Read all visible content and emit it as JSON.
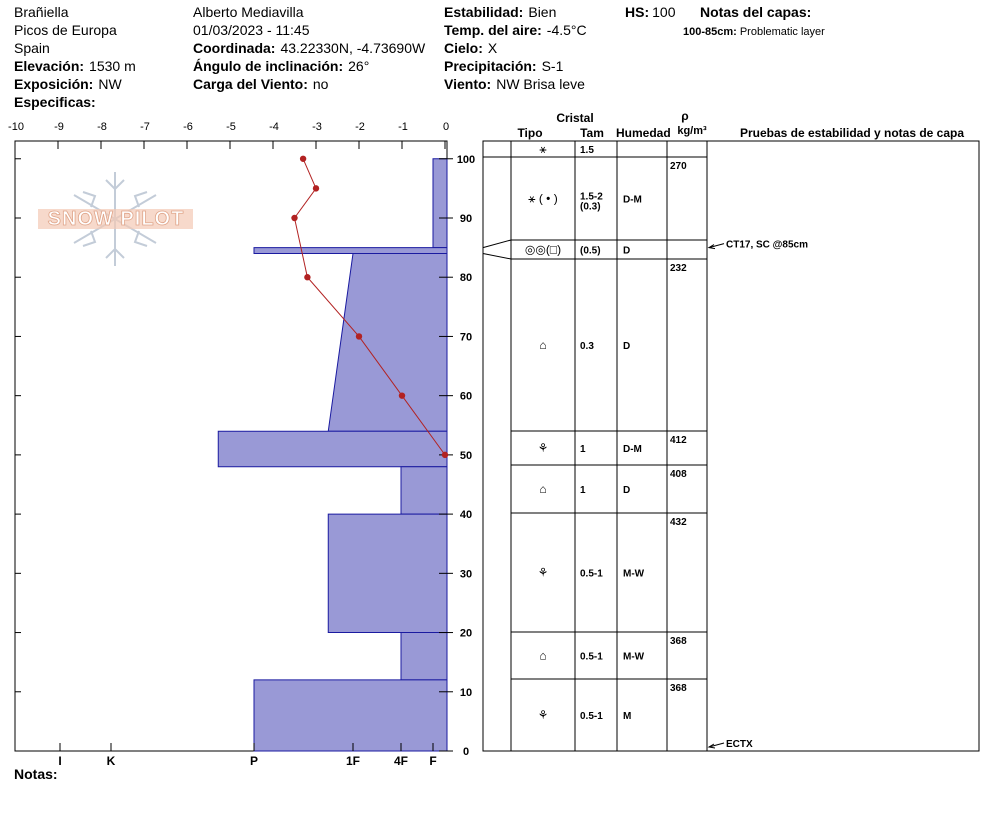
{
  "header": {
    "col1": [
      {
        "value": "Brañiella"
      },
      {
        "value": "Picos de Europa"
      },
      {
        "value": "Spain"
      },
      {
        "label": "Elevación:",
        "value": "1530 m"
      },
      {
        "label": "Exposición:",
        "value": "NW"
      },
      {
        "label": "Especificas:"
      }
    ],
    "col2": [
      {
        "value": "Alberto Mediavilla"
      },
      {
        "value": "01/03/2023 - 11:45"
      },
      {
        "label": "Coordinada:",
        "value": "43.22330N, -4.73690W"
      },
      {
        "label": "Ángulo de inclinación:",
        "value": "26°"
      },
      {
        "label": "Carga del Viento:",
        "value": "no"
      }
    ],
    "col3": [
      {
        "label": "Estabilidad:",
        "value": "Bien"
      },
      {
        "label": "Temp. del aire:",
        "value": "-4.5°C"
      },
      {
        "label": "Cielo:",
        "value": "X"
      },
      {
        "label": "Precipitación:",
        "value": "S-1"
      },
      {
        "label": "Viento:",
        "value": "NW Brisa leve"
      }
    ],
    "hs": {
      "label": "HS:",
      "value": 100
    },
    "notes": {
      "title": "Notas del capas:",
      "items": [
        {
          "label": "100-85cm:",
          "value": "Problematic layer"
        }
      ]
    }
  },
  "footer": "Notas:",
  "chart_data": {
    "type": "snow-profile",
    "logo": "SNOW PILOT",
    "ylim": [
      0,
      103
    ],
    "yticks": [
      0,
      10,
      20,
      30,
      40,
      50,
      60,
      70,
      80,
      90,
      100
    ],
    "temperature": {
      "xlim": [
        -10,
        0
      ],
      "xticks": [
        -10,
        -9,
        -8,
        -7,
        -6,
        -5,
        -4,
        -3,
        -2,
        -1,
        0
      ],
      "color": "#b22222",
      "heights": [
        100,
        95,
        90,
        80,
        70,
        60,
        50
      ],
      "values": [
        -3.3,
        -3,
        -3.5,
        -3.2,
        -2,
        -1,
        0
      ]
    },
    "hardness": {
      "color": "#9999d6",
      "ticks": [
        {
          "value": 6,
          "label": "I"
        },
        {
          "value": 5,
          "label": "K"
        },
        {
          "value": 4,
          "label": "P"
        },
        {
          "value": 3,
          "label": "1F"
        },
        {
          "value": 2,
          "label": "4F"
        },
        {
          "value": 1,
          "label": "F"
        }
      ]
    },
    "layers": [
      {
        "top": 100,
        "bottom": 85,
        "hardness": [
          1,
          1
        ]
      },
      {
        "top": 85,
        "bottom": 84,
        "hardness": [
          4,
          4
        ]
      },
      {
        "top": 84,
        "bottom": 54,
        "hardness": [
          3,
          3.25
        ]
      },
      {
        "top": 54,
        "bottom": 48,
        "hardness": [
          4.25,
          4.25
        ]
      },
      {
        "top": 48,
        "bottom": 40,
        "hardness": [
          2,
          2
        ]
      },
      {
        "top": 40,
        "bottom": 20,
        "hardness": [
          3.25,
          3.25
        ]
      },
      {
        "top": 20,
        "bottom": 12,
        "hardness": [
          2,
          2
        ]
      },
      {
        "top": 12,
        "bottom": 0,
        "hardness": [
          4,
          4
        ]
      }
    ],
    "table": {
      "title": "Cristal",
      "columns": [
        "Tipo",
        "Tam",
        "Humedad"
      ],
      "density_title": "ρ",
      "density_unit": "kg/m³",
      "notes_title": "Pruebas de estabilidad y notas de capa",
      "rows": [
        {
          "type": "⚹",
          "size": "1.5"
        },
        {
          "type": "⚹ ( • )",
          "size": "1.5-2",
          "size_secondary": "(0.3)",
          "humidity": "D-M",
          "density": 270
        },
        {
          "type": "◎◎(□)",
          "size": "(0.5)",
          "humidity": "D"
        },
        {
          "type": "⌂",
          "size": "0.3",
          "humidity": "D",
          "density": 232
        },
        {
          "type": "⚘",
          "size": "1",
          "humidity": "D-M",
          "density": 412
        },
        {
          "type": "⌂",
          "size": "1",
          "humidity": "D",
          "density": 408
        },
        {
          "type": "⚘",
          "size": "0.5-1",
          "humidity": "M-W",
          "density": 432
        },
        {
          "type": "⌂",
          "size": "0.5-1",
          "humidity": "M-W",
          "density": 368
        },
        {
          "type": "⚘",
          "size": "0.5-1",
          "humidity": "M",
          "density": 368
        }
      ]
    },
    "tests": [
      {
        "label": "CT17, SC @85cm",
        "height": 85
      },
      {
        "label": "ECTX",
        "height": 0
      }
    ]
  }
}
